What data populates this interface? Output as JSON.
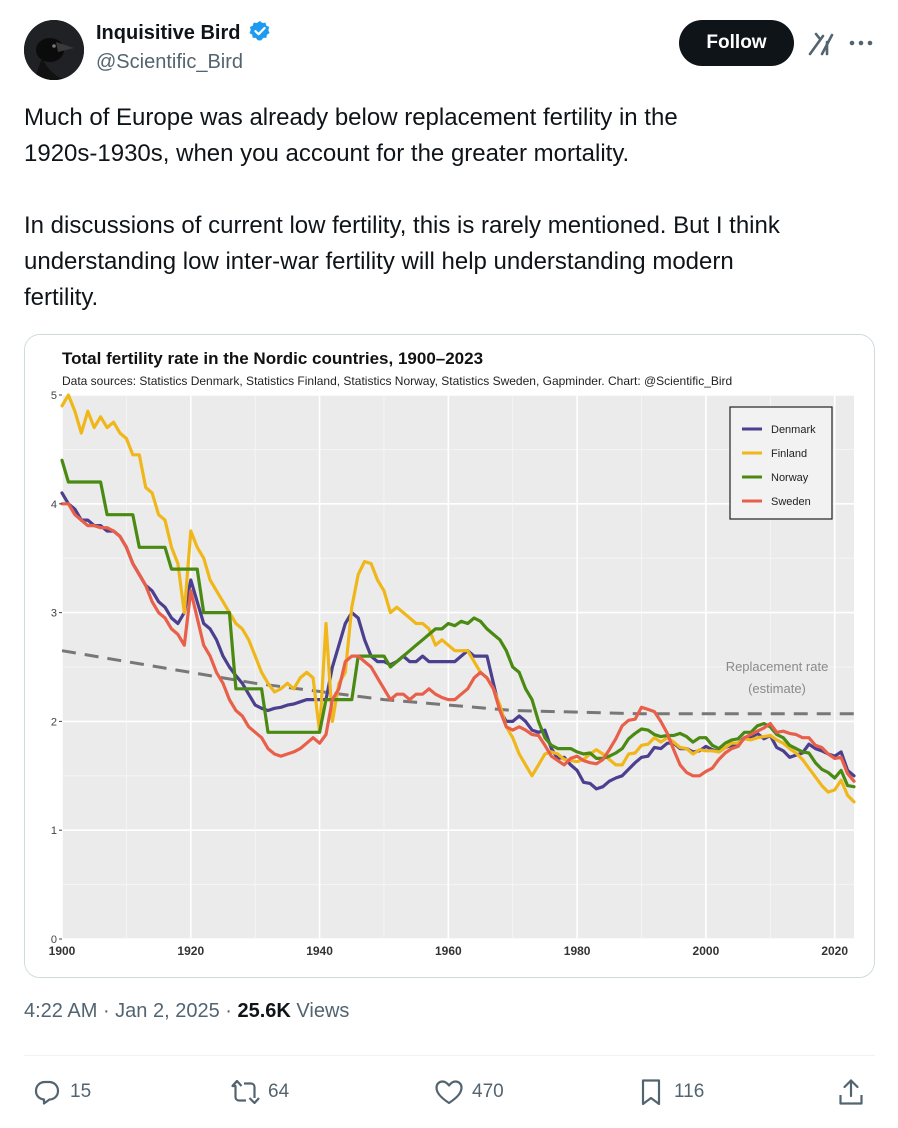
{
  "author": {
    "display_name": "Inquisitive Bird",
    "handle": "@Scientific_Bird",
    "verified": true,
    "avatar_icon": "raven-avatar"
  },
  "header": {
    "follow_label": "Follow",
    "grok_icon": "grok-icon",
    "more_icon": "more-icon"
  },
  "tweet": {
    "paragraph1": "Much of Europe was already below replacement fertility in the\n1920s-1930s, when you account for the greater mortality.",
    "paragraph2": "In discussions of current low fertility, this is rarely mentioned. But I think\nunderstanding low inter-war fertility will help understanding modern\nfertility."
  },
  "meta": {
    "time": "4:22 AM",
    "date": "Jan 2, 2025",
    "views_count": "25.6K",
    "views_label": "Views"
  },
  "actions": {
    "replies": "15",
    "reposts": "64",
    "likes": "470",
    "bookmarks": "116"
  },
  "colors": {
    "accent": "#1d9bf0",
    "text": "#0f1419",
    "muted": "#536471",
    "denmark": "#4b3f8f",
    "finland": "#f0b71b",
    "norway": "#4a8a12",
    "sweden": "#e8604a"
  },
  "chart_data": {
    "type": "line",
    "title": "Total fertility rate in the Nordic countries, 1900–2023",
    "subtitle": "Data sources: Statistics Denmark, Statistics Finland, Statistics Norway, Statistics Sweden, Gapminder.  Chart: @Scientific_Bird",
    "xlim": [
      1900,
      2023
    ],
    "ylim": [
      0,
      5
    ],
    "x_ticks": [
      1900,
      1920,
      1940,
      1960,
      1980,
      2000,
      2020
    ],
    "y_ticks": [
      0,
      1,
      2,
      3,
      4,
      5
    ],
    "grid": true,
    "legend_position": "top-right",
    "annotation": "Replacement rate\n(estimate)",
    "reference_line": {
      "name": "Replacement rate (estimate)",
      "x": [
        1900,
        1930,
        1950,
        1970,
        1990,
        2023
      ],
      "y": [
        2.65,
        2.35,
        2.2,
        2.1,
        2.07,
        2.07
      ],
      "style": "dashed",
      "color": "#777777"
    },
    "series": [
      {
        "name": "Denmark",
        "color": "#4b3f8f",
        "x": [
          1900,
          1901,
          1902,
          1903,
          1904,
          1905,
          1906,
          1907,
          1908,
          1909,
          1910,
          1911,
          1912,
          1913,
          1914,
          1915,
          1916,
          1917,
          1918,
          1919,
          1920,
          1921,
          1922,
          1923,
          1924,
          1925,
          1926,
          1927,
          1928,
          1929,
          1930,
          1931,
          1932,
          1933,
          1934,
          1935,
          1936,
          1937,
          1938,
          1939,
          1940,
          1941,
          1942,
          1943,
          1944,
          1945,
          1946,
          1947,
          1948,
          1949,
          1950,
          1951,
          1952,
          1953,
          1954,
          1955,
          1956,
          1957,
          1958,
          1959,
          1960,
          1961,
          1962,
          1963,
          1964,
          1965,
          1966,
          1967,
          1968,
          1969,
          1970,
          1971,
          1972,
          1973,
          1974,
          1975,
          1976,
          1977,
          1978,
          1979,
          1980,
          1981,
          1982,
          1983,
          1984,
          1985,
          1986,
          1987,
          1988,
          1989,
          1990,
          1991,
          1992,
          1993,
          1994,
          1995,
          1996,
          1997,
          1998,
          1999,
          2000,
          2001,
          2002,
          2003,
          2004,
          2005,
          2006,
          2007,
          2008,
          2009,
          2010,
          2011,
          2012,
          2013,
          2014,
          2015,
          2016,
          2017,
          2018,
          2019,
          2020,
          2021,
          2022,
          2023
        ],
        "y": [
          4.1,
          4.0,
          3.95,
          3.85,
          3.85,
          3.8,
          3.8,
          3.75,
          3.75,
          3.7,
          3.6,
          3.45,
          3.35,
          3.25,
          3.2,
          3.1,
          3.05,
          2.95,
          2.9,
          3.0,
          3.3,
          3.1,
          2.9,
          2.85,
          2.75,
          2.6,
          2.5,
          2.42,
          2.35,
          2.25,
          2.15,
          2.12,
          2.1,
          2.12,
          2.13,
          2.15,
          2.16,
          2.18,
          2.2,
          2.2,
          2.2,
          2.2,
          2.5,
          2.7,
          2.9,
          3.0,
          2.95,
          2.75,
          2.6,
          2.55,
          2.55,
          2.52,
          2.55,
          2.6,
          2.55,
          2.55,
          2.6,
          2.55,
          2.55,
          2.55,
          2.55,
          2.55,
          2.6,
          2.65,
          2.6,
          2.6,
          2.6,
          2.35,
          2.1,
          2.0,
          2.0,
          2.05,
          2.0,
          1.92,
          1.9,
          1.92,
          1.75,
          1.66,
          1.67,
          1.6,
          1.55,
          1.44,
          1.43,
          1.38,
          1.4,
          1.45,
          1.48,
          1.5,
          1.56,
          1.62,
          1.67,
          1.68,
          1.76,
          1.75,
          1.8,
          1.8,
          1.75,
          1.75,
          1.72,
          1.73,
          1.77,
          1.74,
          1.72,
          1.76,
          1.78,
          1.8,
          1.85,
          1.85,
          1.89,
          1.84,
          1.87,
          1.76,
          1.73,
          1.67,
          1.69,
          1.71,
          1.79,
          1.75,
          1.73,
          1.7,
          1.68,
          1.72,
          1.55,
          1.5
        ]
      },
      {
        "name": "Finland",
        "color": "#f0b71b",
        "x": [
          1900,
          1901,
          1902,
          1903,
          1904,
          1905,
          1906,
          1907,
          1908,
          1909,
          1910,
          1911,
          1912,
          1913,
          1914,
          1915,
          1916,
          1917,
          1918,
          1919,
          1920,
          1921,
          1922,
          1923,
          1924,
          1925,
          1926,
          1927,
          1928,
          1929,
          1930,
          1931,
          1932,
          1933,
          1934,
          1935,
          1936,
          1937,
          1938,
          1939,
          1940,
          1941,
          1942,
          1943,
          1944,
          1945,
          1946,
          1947,
          1948,
          1949,
          1950,
          1951,
          1952,
          1953,
          1954,
          1955,
          1956,
          1957,
          1958,
          1959,
          1960,
          1961,
          1962,
          1963,
          1964,
          1965,
          1966,
          1967,
          1968,
          1969,
          1970,
          1971,
          1972,
          1973,
          1974,
          1975,
          1976,
          1977,
          1978,
          1979,
          1980,
          1981,
          1982,
          1983,
          1984,
          1985,
          1986,
          1987,
          1988,
          1989,
          1990,
          1991,
          1992,
          1993,
          1994,
          1995,
          1996,
          1997,
          1998,
          1999,
          2000,
          2001,
          2002,
          2003,
          2004,
          2005,
          2006,
          2007,
          2008,
          2009,
          2010,
          2011,
          2012,
          2013,
          2014,
          2015,
          2016,
          2017,
          2018,
          2019,
          2020,
          2021,
          2022,
          2023
        ],
        "y": [
          4.9,
          5.0,
          4.85,
          4.65,
          4.85,
          4.7,
          4.8,
          4.7,
          4.75,
          4.65,
          4.6,
          4.45,
          4.45,
          4.15,
          4.1,
          3.9,
          3.85,
          3.6,
          3.45,
          3.0,
          3.75,
          3.6,
          3.5,
          3.3,
          3.2,
          3.1,
          3.0,
          2.9,
          2.85,
          2.75,
          2.6,
          2.45,
          2.35,
          2.27,
          2.3,
          2.35,
          2.3,
          2.4,
          2.45,
          2.4,
          1.9,
          2.9,
          2.0,
          2.35,
          2.45,
          3.05,
          3.35,
          3.47,
          3.45,
          3.3,
          3.2,
          3.0,
          3.05,
          3.0,
          2.95,
          2.9,
          2.9,
          2.85,
          2.7,
          2.75,
          2.7,
          2.65,
          2.65,
          2.65,
          2.55,
          2.45,
          2.4,
          2.3,
          2.15,
          1.95,
          1.85,
          1.7,
          1.6,
          1.5,
          1.6,
          1.7,
          1.72,
          1.7,
          1.65,
          1.64,
          1.63,
          1.65,
          1.7,
          1.74,
          1.7,
          1.65,
          1.6,
          1.6,
          1.7,
          1.71,
          1.78,
          1.79,
          1.85,
          1.81,
          1.85,
          1.81,
          1.76,
          1.75,
          1.7,
          1.74,
          1.73,
          1.73,
          1.72,
          1.76,
          1.8,
          1.8,
          1.84,
          1.83,
          1.85,
          1.86,
          1.87,
          1.83,
          1.8,
          1.75,
          1.71,
          1.65,
          1.57,
          1.49,
          1.41,
          1.35,
          1.37,
          1.46,
          1.32,
          1.26
        ]
      },
      {
        "name": "Norway",
        "color": "#4a8a12",
        "x": [
          1900,
          1901,
          1902,
          1903,
          1904,
          1905,
          1906,
          1907,
          1908,
          1909,
          1910,
          1911,
          1912,
          1913,
          1914,
          1915,
          1916,
          1917,
          1918,
          1919,
          1920,
          1921,
          1922,
          1923,
          1924,
          1925,
          1926,
          1927,
          1928,
          1929,
          1930,
          1931,
          1932,
          1933,
          1934,
          1935,
          1936,
          1937,
          1938,
          1939,
          1940,
          1941,
          1942,
          1943,
          1944,
          1945,
          1946,
          1947,
          1948,
          1949,
          1950,
          1951,
          1952,
          1953,
          1954,
          1955,
          1956,
          1957,
          1958,
          1959,
          1960,
          1961,
          1962,
          1963,
          1964,
          1965,
          1966,
          1967,
          1968,
          1969,
          1970,
          1971,
          1972,
          1973,
          1974,
          1975,
          1976,
          1977,
          1978,
          1979,
          1980,
          1981,
          1982,
          1983,
          1984,
          1985,
          1986,
          1987,
          1988,
          1989,
          1990,
          1991,
          1992,
          1993,
          1994,
          1995,
          1996,
          1997,
          1998,
          1999,
          2000,
          2001,
          2002,
          2003,
          2004,
          2005,
          2006,
          2007,
          2008,
          2009,
          2010,
          2011,
          2012,
          2013,
          2014,
          2015,
          2016,
          2017,
          2018,
          2019,
          2020,
          2021,
          2022,
          2023
        ],
        "y": [
          4.4,
          4.2,
          4.2,
          4.2,
          4.2,
          4.2,
          4.2,
          3.9,
          3.9,
          3.9,
          3.9,
          3.9,
          3.6,
          3.6,
          3.6,
          3.6,
          3.6,
          3.4,
          3.4,
          3.4,
          3.4,
          3.4,
          3.0,
          3.0,
          3.0,
          3.0,
          3.0,
          2.3,
          2.3,
          2.3,
          2.3,
          2.3,
          1.9,
          1.9,
          1.9,
          1.9,
          1.9,
          1.9,
          1.9,
          1.9,
          1.9,
          2.2,
          2.2,
          2.2,
          2.2,
          2.2,
          2.6,
          2.6,
          2.6,
          2.6,
          2.6,
          2.5,
          2.55,
          2.6,
          2.65,
          2.7,
          2.75,
          2.8,
          2.85,
          2.85,
          2.9,
          2.88,
          2.92,
          2.9,
          2.95,
          2.92,
          2.85,
          2.8,
          2.75,
          2.65,
          2.5,
          2.45,
          2.3,
          2.2,
          2.0,
          1.85,
          1.78,
          1.75,
          1.75,
          1.75,
          1.72,
          1.7,
          1.71,
          1.66,
          1.66,
          1.68,
          1.71,
          1.75,
          1.84,
          1.89,
          1.93,
          1.92,
          1.88,
          1.86,
          1.87,
          1.87,
          1.89,
          1.86,
          1.81,
          1.85,
          1.85,
          1.78,
          1.75,
          1.8,
          1.83,
          1.84,
          1.9,
          1.9,
          1.96,
          1.98,
          1.95,
          1.88,
          1.85,
          1.78,
          1.75,
          1.72,
          1.71,
          1.62,
          1.56,
          1.53,
          1.48,
          1.55,
          1.41,
          1.4
        ]
      },
      {
        "name": "Sweden",
        "color": "#e8604a",
        "x": [
          1900,
          1901,
          1902,
          1903,
          1904,
          1905,
          1906,
          1907,
          1908,
          1909,
          1910,
          1911,
          1912,
          1913,
          1914,
          1915,
          1916,
          1917,
          1918,
          1919,
          1920,
          1921,
          1922,
          1923,
          1924,
          1925,
          1926,
          1927,
          1928,
          1929,
          1930,
          1931,
          1932,
          1933,
          1934,
          1935,
          1936,
          1937,
          1938,
          1939,
          1940,
          1941,
          1942,
          1943,
          1944,
          1945,
          1946,
          1947,
          1948,
          1949,
          1950,
          1951,
          1952,
          1953,
          1954,
          1955,
          1956,
          1957,
          1958,
          1959,
          1960,
          1961,
          1962,
          1963,
          1964,
          1965,
          1966,
          1967,
          1968,
          1969,
          1970,
          1971,
          1972,
          1973,
          1974,
          1975,
          1976,
          1977,
          1978,
          1979,
          1980,
          1981,
          1982,
          1983,
          1984,
          1985,
          1986,
          1987,
          1988,
          1989,
          1990,
          1991,
          1992,
          1993,
          1994,
          1995,
          1996,
          1997,
          1998,
          1999,
          2000,
          2001,
          2002,
          2003,
          2004,
          2005,
          2006,
          2007,
          2008,
          2009,
          2010,
          2011,
          2012,
          2013,
          2014,
          2015,
          2016,
          2017,
          2018,
          2019,
          2020,
          2021,
          2022,
          2023
        ],
        "y": [
          4.0,
          4.0,
          3.9,
          3.85,
          3.8,
          3.8,
          3.78,
          3.78,
          3.75,
          3.7,
          3.6,
          3.45,
          3.35,
          3.25,
          3.1,
          3.0,
          2.95,
          2.85,
          2.8,
          2.7,
          3.2,
          2.95,
          2.7,
          2.6,
          2.45,
          2.35,
          2.2,
          2.1,
          2.05,
          1.95,
          1.9,
          1.85,
          1.75,
          1.7,
          1.68,
          1.7,
          1.72,
          1.75,
          1.8,
          1.85,
          1.8,
          1.88,
          2.2,
          2.3,
          2.55,
          2.6,
          2.6,
          2.55,
          2.5,
          2.4,
          2.3,
          2.2,
          2.25,
          2.25,
          2.2,
          2.25,
          2.25,
          2.3,
          2.25,
          2.22,
          2.2,
          2.2,
          2.25,
          2.3,
          2.4,
          2.45,
          2.4,
          2.3,
          2.1,
          1.95,
          1.92,
          1.95,
          1.92,
          1.88,
          1.87,
          1.78,
          1.68,
          1.64,
          1.6,
          1.66,
          1.68,
          1.64,
          1.62,
          1.61,
          1.65,
          1.74,
          1.84,
          1.96,
          2.01,
          2.02,
          2.13,
          2.11,
          2.09,
          2.0,
          1.89,
          1.74,
          1.6,
          1.53,
          1.5,
          1.5,
          1.54,
          1.57,
          1.65,
          1.71,
          1.75,
          1.77,
          1.85,
          1.88,
          1.91,
          1.94,
          1.98,
          1.9,
          1.91,
          1.89,
          1.88,
          1.85,
          1.85,
          1.78,
          1.76,
          1.7,
          1.66,
          1.67,
          1.52,
          1.45
        ]
      }
    ]
  }
}
